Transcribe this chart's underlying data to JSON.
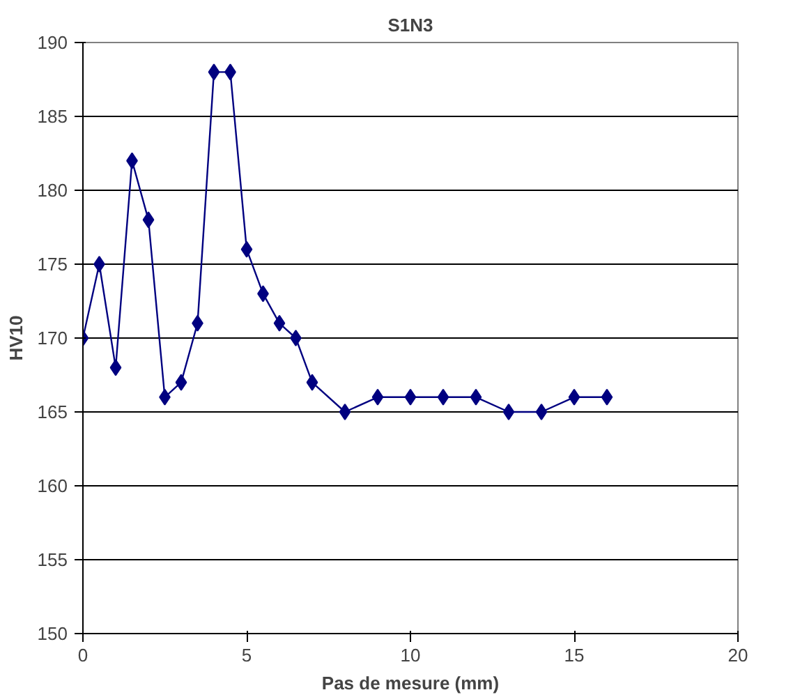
{
  "chart_data": {
    "type": "line",
    "title": "S1N3",
    "xlabel": "Pas de mesure (mm)",
    "ylabel": "HV10",
    "x": [
      0,
      0.5,
      1,
      1.5,
      2,
      2.5,
      3,
      3.5,
      4,
      4.5,
      5,
      5.5,
      6,
      6.5,
      7,
      8,
      9,
      10,
      11,
      12,
      13,
      14,
      15,
      16
    ],
    "series": [
      {
        "color": "#000080",
        "values": [
          170,
          175,
          168,
          182,
          178,
          166,
          167,
          171,
          188,
          188,
          176,
          173,
          171,
          170,
          167,
          165,
          166,
          166,
          166,
          166,
          165,
          165,
          166,
          166
        ]
      }
    ],
    "xlim": [
      0,
      20
    ],
    "xticks": [
      0,
      5,
      10,
      15,
      20
    ],
    "ylim": [
      150,
      190
    ],
    "yticks": [
      150,
      155,
      160,
      165,
      170,
      175,
      180,
      185,
      190
    ],
    "grid": "y",
    "marker": "diamond",
    "line_style": "solid"
  }
}
